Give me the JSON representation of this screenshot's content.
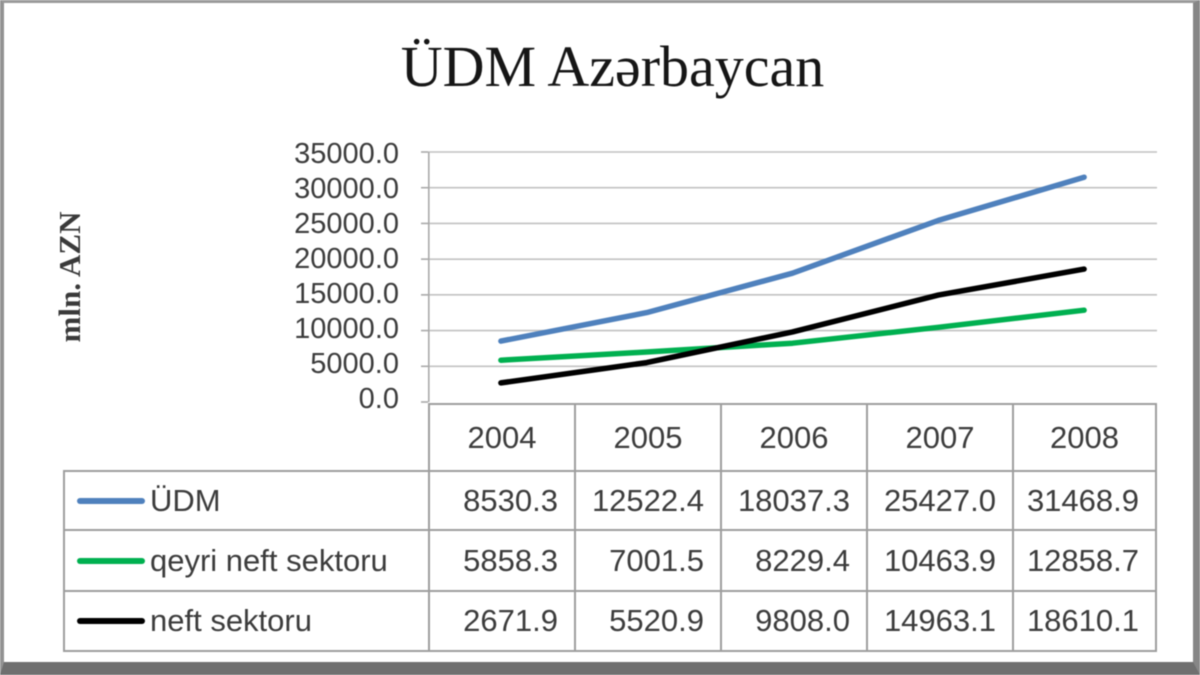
{
  "chart_data": {
    "type": "line",
    "title": "ÜDM Azərbaycan",
    "ylabel": "mln. AZN",
    "xlabel": "",
    "categories": [
      "2004",
      "2005",
      "2006",
      "2007",
      "2008"
    ],
    "series": [
      {
        "name": "ÜDM",
        "color": "#4f81bd",
        "values": [
          8530.3,
          12522.4,
          18037.3,
          25427.0,
          31468.9
        ]
      },
      {
        "name": "qeyri neft sektoru",
        "color": "#00b050",
        "values": [
          5858.3,
          7001.5,
          8229.4,
          10463.9,
          12858.7
        ]
      },
      {
        "name": "neft sektoru",
        "color": "#000000",
        "values": [
          2671.9,
          5520.9,
          9808.0,
          14963.1,
          18610.1
        ]
      }
    ],
    "ylim": [
      0,
      35000
    ],
    "ytick_step": 5000,
    "yticks": [
      "35000.0",
      "30000.0",
      "25000.0",
      "20000.0",
      "15000.0",
      "10000.0",
      "5000.0",
      "0.0"
    ],
    "grid": true,
    "legend_position": "data-table-left-column",
    "value_decimals": 1
  },
  "colors": {
    "gridline": "#c2c2c2",
    "axis": "#a9a9a9",
    "table_border": "#9e9e9e",
    "text": "#3c3c3c",
    "title_text": "#161616"
  }
}
